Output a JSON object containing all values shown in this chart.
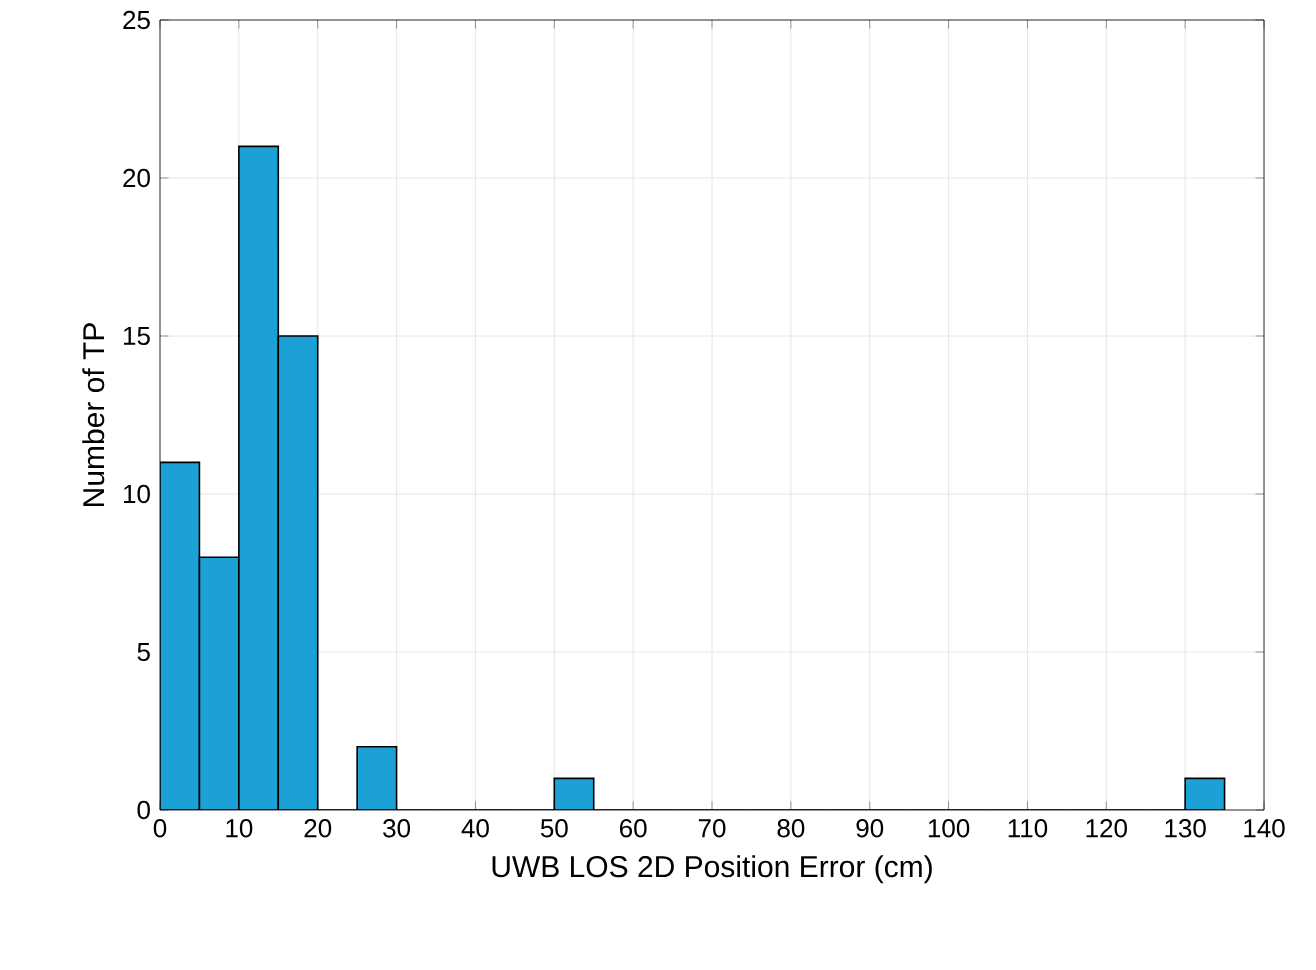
{
  "chart_data": {
    "type": "histogram",
    "xlabel": "UWB LOS 2D Position Error (cm)",
    "ylabel": "Number of TP",
    "bins": [
      0,
      5,
      10,
      15,
      20,
      25,
      30,
      35,
      40,
      45,
      50,
      55,
      60,
      65,
      70,
      75,
      80,
      85,
      90,
      95,
      100,
      105,
      110,
      115,
      120,
      125,
      130,
      135
    ],
    "values": [
      11,
      8,
      21,
      15,
      0,
      2,
      0,
      0,
      0,
      0,
      1,
      0,
      0,
      0,
      0,
      0,
      0,
      0,
      0,
      0,
      0,
      0,
      0,
      0,
      0,
      0,
      1
    ],
    "color": "#1ba1d6",
    "xlim": [
      0,
      140
    ],
    "ylim": [
      0,
      25
    ],
    "xticks": [
      0,
      10,
      20,
      30,
      40,
      50,
      60,
      70,
      80,
      90,
      100,
      110,
      120,
      130,
      140
    ],
    "yticks": [
      0,
      5,
      10,
      15,
      20,
      25
    ],
    "grid": true
  }
}
